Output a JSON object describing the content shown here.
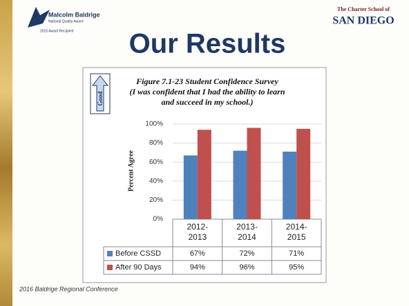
{
  "slide_title": "Our Results",
  "logo_left": {
    "name": "Malcolm Baldrige",
    "line1": "National Quality Award",
    "line2": "2015 Award Recipient"
  },
  "logo_right": {
    "line1": "The Charter School of",
    "line2": "SAN DIEGO"
  },
  "footer": "2016 Baldrige Regional Conference",
  "chart_data": {
    "type": "bar",
    "badge": "Good",
    "title": [
      "Figure 7.1-23 Student Confidence Survey",
      "(I was confident that I had the ability to learn",
      "and succeed in my school.)"
    ],
    "y_label": "Percent Agree",
    "categories": [
      "2012-2013",
      "2013-2014",
      "2014-2015"
    ],
    "series": [
      {
        "name": "Before CSSD",
        "color": "#4f81bd",
        "values": [
          67,
          72,
          71
        ],
        "value_labels": [
          "67%",
          "72%",
          "71%"
        ]
      },
      {
        "name": "After 90 Days",
        "color": "#c0504d",
        "values": [
          94,
          96,
          95
        ],
        "value_labels": [
          "94%",
          "96%",
          "95%"
        ]
      }
    ],
    "ylim": [
      0,
      100
    ],
    "yticks": [
      {
        "value": 0,
        "label": "0%"
      },
      {
        "value": 20,
        "label": "20%"
      },
      {
        "value": 40,
        "label": "40%"
      },
      {
        "value": 60,
        "label": "60%"
      },
      {
        "value": 80,
        "label": "80%"
      },
      {
        "value": 100,
        "label": "100%"
      }
    ],
    "grid": true
  }
}
